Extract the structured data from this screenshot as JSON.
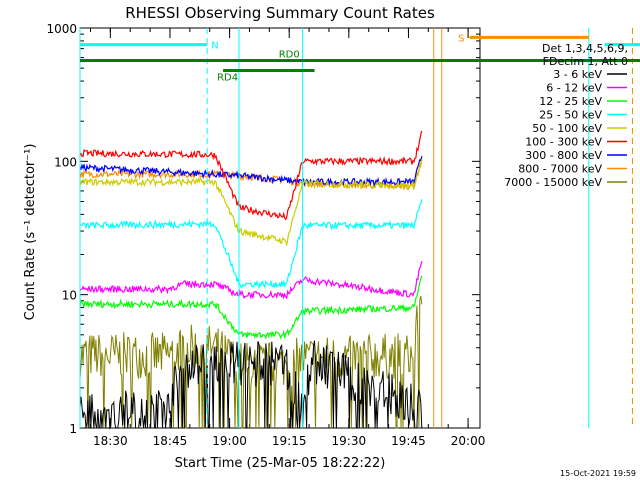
{
  "chart_data": {
    "type": "line",
    "title": "RHESSI Observing Summary Count Rates",
    "xlabel": "Start Time (25-Mar-05 18:22:22)",
    "ylabel": "Count Rate (s⁻¹ detector⁻¹)",
    "yscale": "log",
    "ylim": [
      1,
      1000
    ],
    "y_ticks": [
      {
        "value": 1,
        "label": "1"
      },
      {
        "value": 10,
        "label": "10"
      },
      {
        "value": 100,
        "label": "100"
      },
      {
        "value": 1000,
        "label": "1000"
      }
    ],
    "xlim": [
      "18:22:22",
      "20:03:00"
    ],
    "x_ticks": [
      "18:30",
      "18:45",
      "19:00",
      "19:15",
      "19:30",
      "19:45",
      "20:00"
    ],
    "grid": false,
    "legend_position": "right",
    "legend_header": [
      "Det 1,3,4,5,6,9,",
      "FDecim 1, Att 0"
    ],
    "series": [
      {
        "name": "3 - 6 keV",
        "color": "#000000",
        "values": [
          [
            0,
            1.3
          ],
          [
            22,
            1.3
          ],
          [
            26,
            3.0
          ],
          [
            52,
            3.0
          ],
          [
            56,
            1.2
          ],
          [
            58,
            3.2
          ],
          [
            86,
            1.4
          ],
          [
            106,
            7.0
          ],
          [
            148,
            1.0
          ],
          [
            160,
            1.3
          ],
          [
            166,
            1.2
          ]
        ]
      },
      {
        "name": "6 - 12 keV",
        "color": "#ff00ff",
        "values": [
          [
            0,
            11
          ],
          [
            22,
            11
          ],
          [
            26,
            12
          ],
          [
            34,
            12
          ],
          [
            40,
            10
          ],
          [
            52,
            10
          ],
          [
            56,
            13
          ],
          [
            84,
            10
          ],
          [
            86,
            18
          ],
          [
            148,
            11
          ],
          [
            154,
            10
          ],
          [
            166,
            10
          ]
        ]
      },
      {
        "name": "12 - 25 keV",
        "color": "#00ff00",
        "values": [
          [
            0,
            8.5
          ],
          [
            34,
            8.5
          ],
          [
            40,
            5
          ],
          [
            52,
            5
          ],
          [
            56,
            7.5
          ],
          [
            84,
            8
          ],
          [
            86,
            14
          ],
          [
            148,
            9
          ],
          [
            154,
            8
          ],
          [
            166,
            8
          ]
        ]
      },
      {
        "name": "25 - 50 keV",
        "color": "#00ffff",
        "values": [
          [
            0,
            33
          ],
          [
            34,
            34
          ],
          [
            40,
            12
          ],
          [
            52,
            12
          ],
          [
            56,
            33
          ],
          [
            84,
            33
          ],
          [
            86,
            50
          ],
          [
            148,
            40
          ],
          [
            154,
            33
          ],
          [
            166,
            32
          ]
        ]
      },
      {
        "name": "50 - 100 keV",
        "color": "#cccc00",
        "values": [
          [
            0,
            70
          ],
          [
            34,
            70
          ],
          [
            40,
            30
          ],
          [
            52,
            25
          ],
          [
            56,
            68
          ],
          [
            84,
            66
          ],
          [
            86,
            100
          ],
          [
            148,
            70
          ],
          [
            154,
            65
          ],
          [
            166,
            62
          ]
        ]
      },
      {
        "name": "100 - 300 keV",
        "color": "#ff0000",
        "values": [
          [
            0,
            115
          ],
          [
            34,
            112
          ],
          [
            40,
            45
          ],
          [
            52,
            38
          ],
          [
            56,
            100
          ],
          [
            84,
            100
          ],
          [
            86,
            160
          ],
          [
            148,
            125
          ],
          [
            154,
            110
          ],
          [
            166,
            105
          ]
        ]
      },
      {
        "name": "300 - 800 keV",
        "color": "#0000ff",
        "values": [
          [
            0,
            90
          ],
          [
            34,
            80
          ],
          [
            40,
            78
          ],
          [
            52,
            72
          ],
          [
            56,
            70
          ],
          [
            84,
            70
          ],
          [
            86,
            110
          ],
          [
            148,
            100
          ],
          [
            154,
            88
          ],
          [
            166,
            82
          ]
        ]
      },
      {
        "name": "800 - 7000 keV",
        "color": "#ff8c00",
        "values": [
          [
            0,
            80
          ],
          [
            34,
            80
          ],
          [
            40,
            78
          ],
          [
            52,
            72
          ],
          [
            56,
            68
          ],
          [
            84,
            65
          ],
          [
            86,
            105
          ],
          [
            148,
            90
          ],
          [
            154,
            78
          ],
          [
            166,
            72
          ]
        ]
      },
      {
        "name": "7000 - 15000 keV",
        "color": "#808000",
        "values": [
          [
            0,
            3.5
          ],
          [
            22,
            3.5
          ],
          [
            26,
            4.0
          ],
          [
            34,
            4.0
          ],
          [
            40,
            3.0
          ],
          [
            52,
            3.0
          ],
          [
            56,
            3.3
          ],
          [
            84,
            3.5
          ],
          [
            86,
            12
          ],
          [
            148,
            4.2
          ],
          [
            154,
            3.3
          ],
          [
            166,
            3.5
          ]
        ]
      }
    ],
    "gaps_minutes": [
      [
        86,
        146
      ]
    ],
    "flag_bars": [
      {
        "label": "N",
        "color": "#00ffff",
        "segments": [
          [
            0,
            32
          ],
          [
            132,
            166
          ]
        ],
        "level": 750
      },
      {
        "label": "S",
        "color": "#ff8c00",
        "segments": [
          [
            98,
            128
          ]
        ],
        "level": 850
      },
      {
        "label": "RD0",
        "color": "#008000",
        "segments": [
          [
            0,
            166
          ]
        ],
        "level": 570
      },
      {
        "label": "RD4",
        "color": "#008000",
        "segments": [
          [
            36,
            59
          ]
        ],
        "level": 480
      }
    ],
    "vertical_markers": [
      {
        "minute": 0,
        "color": "#00ffff",
        "style": "solid"
      },
      {
        "minute": 32,
        "color": "#00ffff",
        "style": "dashed"
      },
      {
        "minute": 40,
        "color": "#00ffff",
        "style": "solid"
      },
      {
        "minute": 56,
        "color": "#00ffff",
        "style": "solid"
      },
      {
        "minute": 89,
        "color": "#ff8c00",
        "style": "solid"
      },
      {
        "minute": 91,
        "color": "#ff8c00",
        "style": "solid"
      },
      {
        "minute": 128,
        "color": "#00ffff",
        "style": "solid"
      },
      {
        "minute": 139,
        "color": "#ff8c00",
        "style": "dashed"
      },
      {
        "minute": 166,
        "color": "#00ffff",
        "style": "dashed"
      }
    ]
  },
  "footer": {
    "timestamp": "15-Oct-2021 19:59"
  }
}
